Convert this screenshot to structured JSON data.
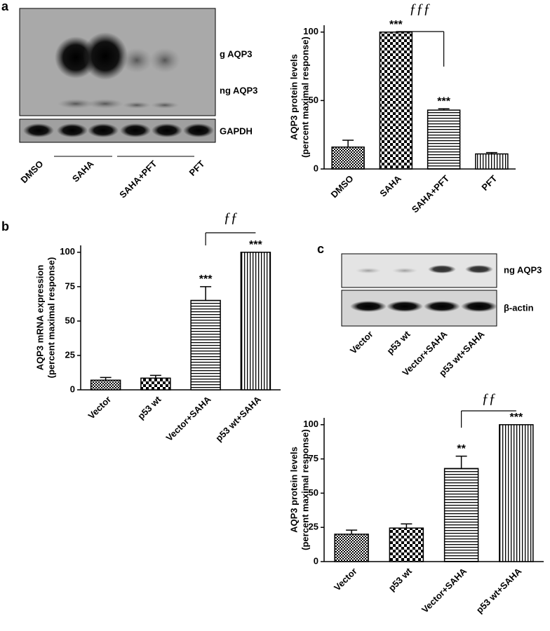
{
  "figure": {
    "panel_labels": [
      "a",
      "b",
      "c"
    ],
    "blot_a": {
      "bands": [
        "g AQP3",
        "ng AQP3",
        "GAPDH"
      ],
      "lanes": [
        "DMSO",
        "SAHA",
        "SAHA+PFT",
        "PFT"
      ]
    },
    "blot_c": {
      "bands": [
        "ng AQP3",
        "β-actin"
      ],
      "lanes": [
        "Vector",
        "p53 wt",
        "Vector+SAHA",
        "p53 wt+SAHA"
      ]
    }
  },
  "chart_data": [
    {
      "type": "bar",
      "ylabel": [
        "AQP3 protein levels",
        "(percent maximal response)"
      ],
      "categories": [
        "DMSO",
        "SAHA",
        "SAHA+PFT",
        "PFT"
      ],
      "values": [
        16,
        100,
        43,
        11
      ],
      "errors": [
        5,
        0,
        1,
        1
      ],
      "ylim": [
        0,
        105
      ],
      "yticks": [
        0,
        50,
        100
      ],
      "color": "#000000",
      "annotations": [
        {
          "category": "SAHA",
          "text": "***"
        },
        {
          "category": "SAHA+PFT",
          "text": "***"
        }
      ],
      "bracket": {
        "from": "SAHA",
        "to": "SAHA+PFT",
        "text": "ƒƒƒ"
      }
    },
    {
      "type": "bar",
      "ylabel": [
        "AQP3 mRNA expression",
        "(percent maximal response)"
      ],
      "categories": [
        "Vector",
        "p53 wt",
        "Vector+SAHA",
        "p53 wt+SAHA"
      ],
      "values": [
        7,
        8.5,
        65,
        100
      ],
      "errors": [
        2,
        2,
        10,
        0
      ],
      "ylim": [
        0,
        105
      ],
      "yticks": [
        0,
        25,
        50,
        75,
        100
      ],
      "color": "#000000",
      "annotations": [
        {
          "category": "Vector+SAHA",
          "text": "***"
        },
        {
          "category": "p53 wt+SAHA",
          "text": "***"
        }
      ],
      "bracket": {
        "from": "Vector+SAHA",
        "to": "p53 wt+SAHA",
        "text": "ƒƒ"
      }
    },
    {
      "type": "bar",
      "ylabel": [
        "AQP3 protein levels",
        "(percent maximal response)"
      ],
      "categories": [
        "Vector",
        "p53 wt",
        "Vector+SAHA",
        "p53 wt+SAHA"
      ],
      "values": [
        20,
        24.5,
        68,
        100
      ],
      "errors": [
        3,
        3,
        9,
        0
      ],
      "ylim": [
        0,
        105
      ],
      "yticks": [
        0,
        25,
        50,
        75,
        100
      ],
      "color": "#000000",
      "annotations": [
        {
          "category": "Vector+SAHA",
          "text": "**"
        },
        {
          "category": "p53 wt+SAHA",
          "text": "***"
        }
      ],
      "bracket": {
        "from": "Vector+SAHA",
        "to": "p53 wt+SAHA",
        "text": "ƒƒ"
      }
    }
  ]
}
